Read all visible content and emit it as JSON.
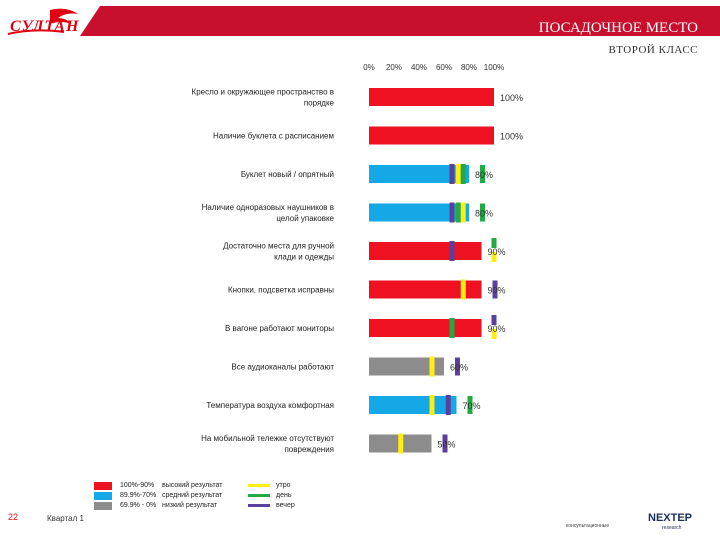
{
  "header": {
    "logo_text": "СУЛТАН",
    "title": "ПОСАДОЧНОЕ МЕСТО",
    "subtitle": "ВТОРОЙ КЛАСС"
  },
  "footer": {
    "page_number": "22",
    "quarter": "Квартал 1",
    "consult": "консультационные",
    "brand": "NEXTEP",
    "brand_sub": "research"
  },
  "legend": {
    "ranges": [
      {
        "label": "100%-90%",
        "desc": "высокий результат",
        "color": "#ee1122"
      },
      {
        "label": "89.9%-70%",
        "desc": "средний результат",
        "color": "#14a9e6"
      },
      {
        "label": "69.9% - 0%",
        "desc": "низкий результат",
        "color": "#8c8c8c"
      }
    ],
    "times": [
      {
        "label": "утро",
        "color": "#ffee11"
      },
      {
        "label": "день",
        "color": "#22aa44"
      },
      {
        "label": "вечер",
        "color": "#5a3f9c"
      }
    ]
  },
  "chart_data": {
    "type": "bar",
    "orientation": "horizontal",
    "title": "ПОСАДОЧНОЕ МЕСТО — ВТОРОЙ КЛАСС",
    "xlim": [
      0,
      100
    ],
    "ticks": [
      "0%",
      "20%",
      "40%",
      "60%",
      "80%",
      "100%"
    ],
    "categories": [
      [
        "Кресло и окружающее пространство в",
        "порядке"
      ],
      [
        "Наличие буклета с расписанием"
      ],
      [
        "Буклет новый / опрятный"
      ],
      [
        "Наличие одноразовых наушников в",
        "целой упаковке"
      ],
      [
        "Достаточно места для ручной",
        "клади и одежды"
      ],
      [
        "Кнопки, подсветка исправны"
      ],
      [
        "В вагоне работают мониторы"
      ],
      [
        "Все аудиоканалы работают"
      ],
      [
        "Температура воздуха комфортная"
      ],
      [
        "На мобильной тележке отсутствуют",
        "повреждения"
      ]
    ],
    "values": [
      100,
      100,
      80,
      80,
      90,
      90,
      90,
      60,
      70,
      50
    ],
    "value_labels": [
      "100%",
      "100%",
      "80%",
      "80%",
      "90%",
      "90%",
      "90%",
      "60%",
      "70%",
      "50%"
    ],
    "bar_colors": [
      "#ee1122",
      "#ee1122",
      "#14a9e6",
      "#14a9e6",
      "#ee1122",
      "#ee1122",
      "#ee1122",
      "#8c8c8c",
      "#14a9e6",
      "#8c8c8c"
    ],
    "time_markers": [
      [],
      [],
      [
        {
          "t": "вечер",
          "v": 66
        },
        {
          "t": "утро",
          "v": 71
        },
        {
          "t": "день",
          "v": 75
        }
      ],
      [
        {
          "t": "вечер",
          "v": 66
        },
        {
          "t": "день",
          "v": 71
        },
        {
          "t": "утро",
          "v": 75
        }
      ],
      [
        {
          "t": "вечер",
          "v": 66
        }
      ],
      [
        {
          "t": "утро",
          "v": 75
        }
      ],
      [
        {
          "t": "день",
          "v": 66
        }
      ],
      [
        {
          "t": "утро",
          "v": 50
        }
      ],
      [
        {
          "t": "утро",
          "v": 50
        },
        {
          "t": "вечер",
          "v": 63
        }
      ],
      [
        {
          "t": "утро",
          "v": 25
        }
      ]
    ],
    "side_markers": [
      [],
      [],
      [
        {
          "t": "день",
          "pos": "right"
        }
      ],
      [
        {
          "t": "день",
          "pos": "right"
        }
      ],
      [
        {
          "t": "день",
          "pos": "top"
        },
        {
          "t": "утро",
          "pos": "bottom"
        }
      ],
      [
        {
          "t": "вечер",
          "pos": "right"
        }
      ],
      [
        {
          "t": "вечер",
          "pos": "top"
        },
        {
          "t": "утро",
          "pos": "bottom"
        }
      ],
      [
        {
          "t": "вечер",
          "pos": "right"
        }
      ],
      [
        {
          "t": "день",
          "pos": "right"
        }
      ],
      [
        {
          "t": "вечер",
          "pos": "right"
        }
      ]
    ]
  }
}
